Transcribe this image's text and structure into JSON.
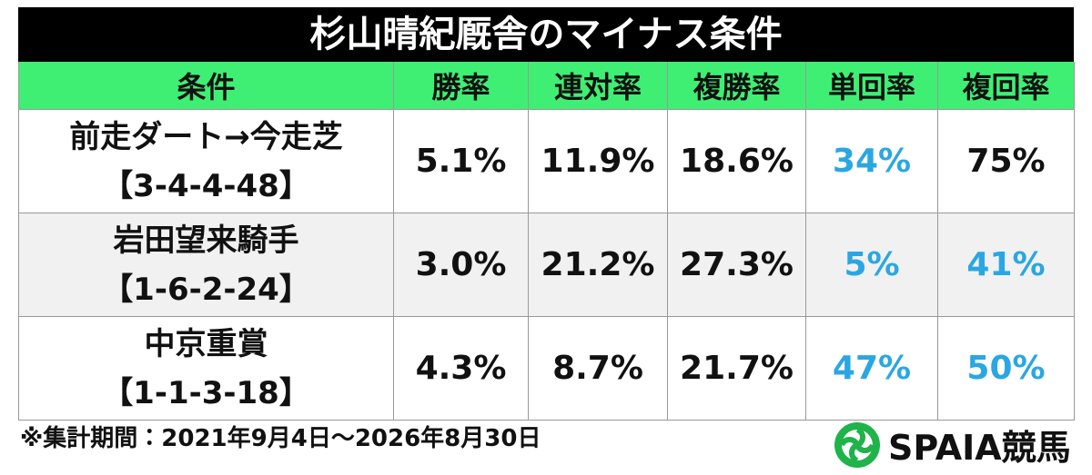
{
  "title": "杉山晴紀厩舎のマイナス条件",
  "table": {
    "header": [
      "条件",
      "勝率",
      "連対率",
      "複勝率",
      "単回率",
      "複回率"
    ],
    "highlight_color": "#2aa7e2",
    "rows": [
      {
        "condition": "前走ダート→今走芝",
        "record": "【3-4-4-48】",
        "cells": [
          "5.1%",
          "11.9%",
          "18.6%",
          "34%",
          "75%"
        ],
        "highlight": [
          false,
          false,
          false,
          true,
          false
        ]
      },
      {
        "condition": "岩田望来騎手",
        "record": "【1-6-2-24】",
        "cells": [
          "3.0%",
          "21.2%",
          "27.3%",
          "5%",
          "41%"
        ],
        "highlight": [
          false,
          false,
          false,
          true,
          true
        ]
      },
      {
        "condition": "中京重賞",
        "record": "【1-1-3-18】",
        "cells": [
          "4.3%",
          "8.7%",
          "21.7%",
          "47%",
          "50%"
        ],
        "highlight": [
          false,
          false,
          false,
          true,
          true
        ]
      }
    ]
  },
  "footnote": "※集計期間：2021年9月4日～2026年8月30日",
  "logo": "SPAIA競馬"
}
